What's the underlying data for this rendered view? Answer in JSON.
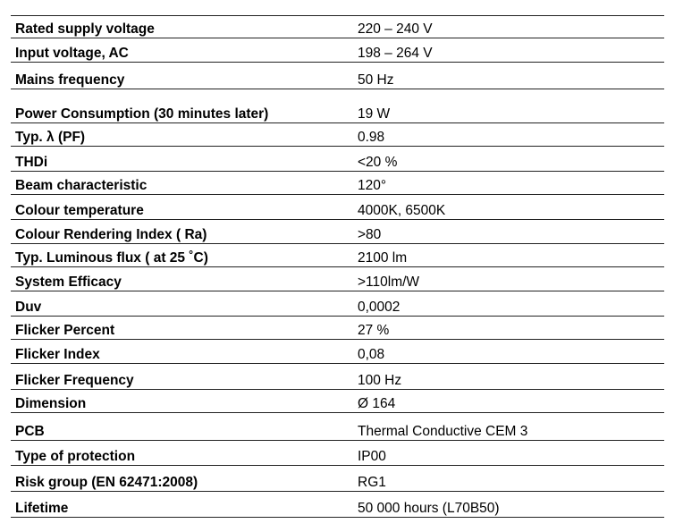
{
  "table": {
    "rows": [
      [
        "Rated supply voltage",
        "220 – 240 V"
      ],
      [
        "Input voltage, AC",
        "198 – 264 V"
      ],
      [
        "Mains frequency",
        "50 Hz"
      ],
      [
        "Power Consumption (30 minutes later)",
        "19 W"
      ],
      [
        "Typ. λ (PF)",
        "0.98"
      ],
      [
        "THDi",
        "<20 %"
      ],
      [
        "Beam characteristic",
        "120°"
      ],
      [
        "Colour temperature",
        "4000K, 6500K"
      ],
      [
        "Colour Rendering Index ( Ra)",
        ">80"
      ],
      [
        "Typ. Luminous flux ( at 25 ˚C)",
        "2100 lm"
      ],
      [
        "System Efficacy",
        ">110lm/W"
      ],
      [
        "Duv",
        "0,0002"
      ],
      [
        "Flicker Percent",
        "27 %"
      ],
      [
        "Flicker Index",
        "0,08"
      ],
      [
        "Flicker Frequency",
        "100 Hz"
      ],
      [
        "Dimension",
        "Ø 164"
      ],
      [
        "PCB",
        "Thermal Conductive CEM 3"
      ],
      [
        "Type of protection",
        "IP00"
      ],
      [
        "Risk group (EN 62471:2008)",
        "RG1"
      ],
      [
        "Lifetime",
        "50 000 hours (L70B50)"
      ]
    ]
  }
}
